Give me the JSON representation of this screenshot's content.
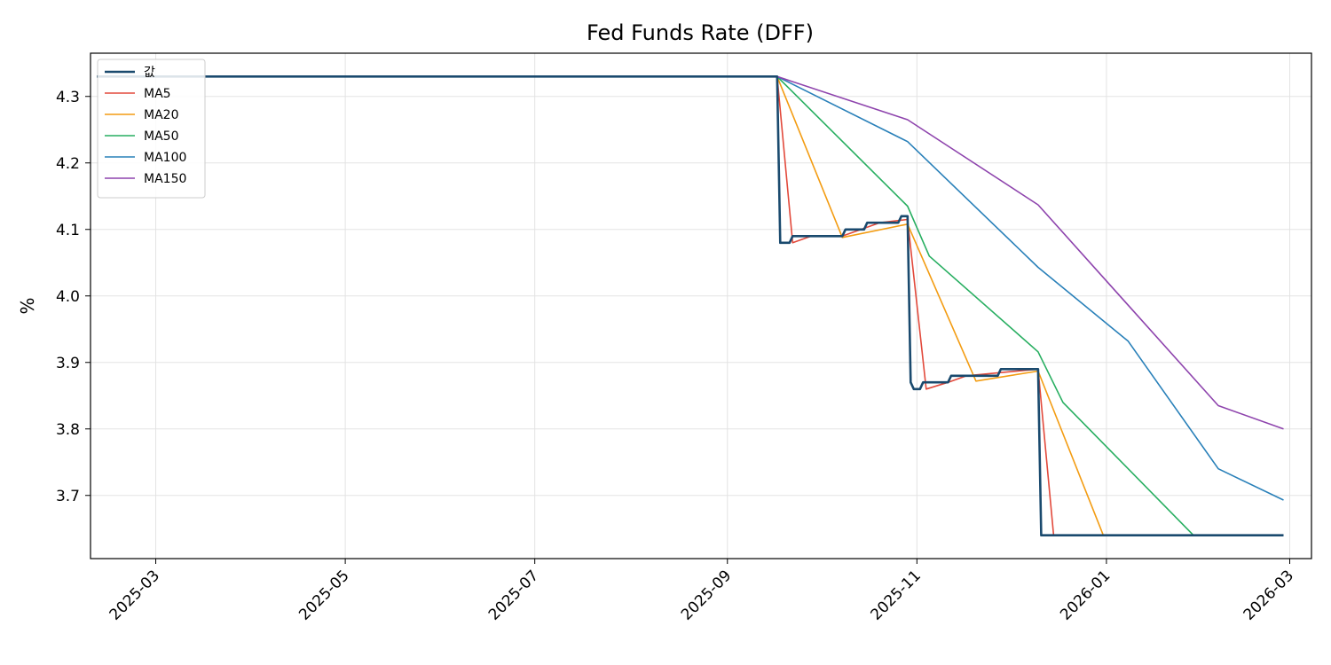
{
  "chart_data": {
    "type": "line",
    "title": "Fed Funds Rate (DFF)",
    "xlabel": "",
    "ylabel": "%",
    "x_ticks": [
      "2025-03",
      "2025-05",
      "2025-07",
      "2025-09",
      "2025-11",
      "2026-01",
      "2026-03"
    ],
    "y_ticks": [
      "3.7",
      "3.8",
      "3.9",
      "4.0",
      "4.1",
      "4.2",
      "4.3"
    ],
    "xlim": [
      "2025-02-08",
      "2026-03-08"
    ],
    "ylim": [
      3.605,
      4.365
    ],
    "grid": true,
    "legend_position": "top-left",
    "series": [
      {
        "name": "값",
        "color": "#1a4a6e",
        "width": 2.6,
        "points": [
          [
            "2025-02-10",
            4.33
          ],
          [
            "2025-09-17",
            4.33
          ],
          [
            "2025-09-18",
            4.08
          ],
          [
            "2025-09-21",
            4.08
          ],
          [
            "2025-09-22",
            4.09
          ],
          [
            "2025-10-08",
            4.09
          ],
          [
            "2025-10-09",
            4.1
          ],
          [
            "2025-10-15",
            4.1
          ],
          [
            "2025-10-16",
            4.11
          ],
          [
            "2025-10-26",
            4.11
          ],
          [
            "2025-10-27",
            4.12
          ],
          [
            "2025-10-29",
            4.12
          ],
          [
            "2025-10-30",
            3.87
          ],
          [
            "2025-10-31",
            3.86
          ],
          [
            "2025-11-02",
            3.86
          ],
          [
            "2025-11-03",
            3.87
          ],
          [
            "2025-11-11",
            3.87
          ],
          [
            "2025-11-12",
            3.88
          ],
          [
            "2025-11-27",
            3.88
          ],
          [
            "2025-11-28",
            3.89
          ],
          [
            "2025-12-10",
            3.89
          ],
          [
            "2025-12-11",
            3.64
          ],
          [
            "2026-02-27",
            3.64
          ]
        ]
      },
      {
        "name": "MA5",
        "color": "#e2493b",
        "width": 1.6,
        "points": [
          [
            "2025-02-10",
            4.33
          ],
          [
            "2025-09-17",
            4.33
          ],
          [
            "2025-09-22",
            4.08
          ],
          [
            "2025-09-28",
            4.09
          ],
          [
            "2025-10-08",
            4.09
          ],
          [
            "2025-10-14",
            4.1
          ],
          [
            "2025-10-20",
            4.11
          ],
          [
            "2025-10-29",
            4.115
          ],
          [
            "2025-11-04",
            3.86
          ],
          [
            "2025-11-11",
            3.87
          ],
          [
            "2025-11-17",
            3.88
          ],
          [
            "2025-12-10",
            3.89
          ],
          [
            "2025-12-15",
            3.64
          ],
          [
            "2026-02-27",
            3.64
          ]
        ]
      },
      {
        "name": "MA20",
        "color": "#f39c12",
        "width": 1.6,
        "points": [
          [
            "2025-04-18",
            4.33
          ],
          [
            "2025-09-17",
            4.33
          ],
          [
            "2025-10-08",
            4.088
          ],
          [
            "2025-10-29",
            4.108
          ],
          [
            "2025-11-20",
            3.872
          ],
          [
            "2025-12-10",
            3.887
          ],
          [
            "2025-12-31",
            3.64
          ],
          [
            "2026-02-27",
            3.64
          ]
        ]
      },
      {
        "name": "MA50",
        "color": "#27ae60",
        "width": 1.6,
        "points": [
          [
            "2025-04-18",
            4.33
          ],
          [
            "2025-06-08",
            4.33
          ],
          [
            "2025-09-17",
            4.33
          ],
          [
            "2025-10-29",
            4.135
          ],
          [
            "2025-11-05",
            4.06
          ],
          [
            "2025-12-10",
            3.916
          ],
          [
            "2025-12-18",
            3.84
          ],
          [
            "2026-01-29",
            3.64
          ],
          [
            "2026-02-27",
            3.64
          ]
        ]
      },
      {
        "name": "MA100",
        "color": "#2980b9",
        "width": 1.6,
        "points": [
          [
            "2025-06-08",
            4.33
          ],
          [
            "2025-07-28",
            4.33
          ],
          [
            "2025-09-17",
            4.33
          ],
          [
            "2025-10-29",
            4.232
          ],
          [
            "2025-12-10",
            4.043
          ],
          [
            "2026-01-08",
            3.932
          ],
          [
            "2026-02-06",
            3.74
          ],
          [
            "2026-02-27",
            3.693
          ]
        ]
      },
      {
        "name": "MA150",
        "color": "#8e44ad",
        "width": 1.6,
        "points": [
          [
            "2025-07-28",
            4.33
          ],
          [
            "2025-09-17",
            4.33
          ],
          [
            "2025-10-29",
            4.265
          ],
          [
            "2025-12-10",
            4.137
          ],
          [
            "2026-02-06",
            3.835
          ],
          [
            "2026-02-27",
            3.8
          ]
        ]
      }
    ]
  }
}
